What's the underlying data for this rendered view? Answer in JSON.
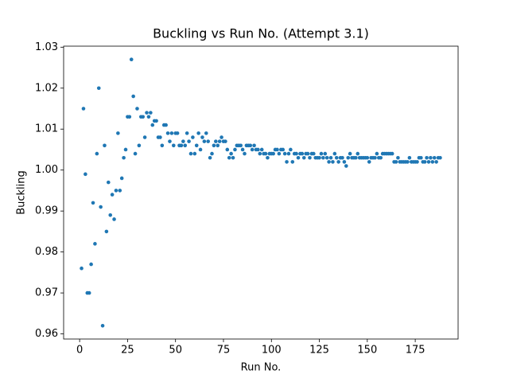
{
  "chart_data": {
    "type": "scatter",
    "title": "Buckling vs Run No. (Attempt 3.1)",
    "x_label": "Run No.",
    "y_label": "Buckling",
    "x": [
      1,
      2,
      3,
      4,
      5,
      6,
      7,
      8,
      9,
      10,
      11,
      12,
      13,
      14,
      15,
      16,
      17,
      18,
      19,
      20,
      21,
      22,
      23,
      24,
      25,
      26,
      27,
      28,
      29,
      30,
      31,
      32,
      33,
      34,
      35,
      36,
      37,
      38,
      39,
      40,
      41,
      42,
      43,
      44,
      45,
      46,
      47,
      48,
      49,
      50,
      51,
      52,
      53,
      54,
      55,
      56,
      57,
      58,
      59,
      60,
      61,
      62,
      63,
      64,
      65,
      66,
      67,
      68,
      69,
      70,
      71,
      72,
      73,
      74,
      75,
      76,
      77,
      78,
      79,
      80,
      81,
      82,
      83,
      84,
      85,
      86,
      87,
      88,
      89,
      90,
      91,
      92,
      93,
      94,
      95,
      96,
      97,
      98,
      99,
      100,
      101,
      102,
      103,
      104,
      105,
      106,
      107,
      108,
      109,
      110,
      111,
      112,
      113,
      114,
      115,
      116,
      117,
      118,
      119,
      120,
      121,
      122,
      123,
      124,
      125,
      126,
      127,
      128,
      129,
      130,
      131,
      132,
      133,
      134,
      135,
      136,
      137,
      138,
      139,
      140,
      141,
      142,
      143,
      144,
      145,
      146,
      147,
      148,
      149,
      150,
      151,
      152,
      153,
      154,
      155,
      156,
      157,
      158,
      159,
      160,
      161,
      162,
      163,
      164,
      165,
      166,
      167,
      168,
      169,
      170,
      171,
      172,
      173,
      174,
      175,
      176,
      177,
      178,
      179,
      180,
      181,
      182,
      183,
      184,
      185,
      186,
      187,
      188
    ],
    "series": [
      {
        "color": "#1f77b4",
        "values": [
          0.976,
          1.015,
          0.999,
          0.97,
          0.97,
          0.977,
          0.992,
          0.982,
          1.004,
          1.02,
          0.991,
          0.962,
          1.006,
          0.985,
          0.997,
          0.989,
          0.994,
          0.988,
          0.995,
          1.009,
          0.995,
          0.998,
          1.003,
          1.005,
          1.013,
          1.013,
          1.027,
          1.018,
          1.004,
          1.015,
          1.006,
          1.013,
          1.013,
          1.008,
          1.014,
          1.013,
          1.014,
          1.011,
          1.012,
          1.012,
          1.008,
          1.008,
          1.006,
          1.011,
          1.011,
          1.009,
          1.007,
          1.009,
          1.006,
          1.009,
          1.009,
          1.006,
          1.006,
          1.007,
          1.006,
          1.009,
          1.007,
          1.004,
          1.008,
          1.004,
          1.006,
          1.009,
          1.005,
          1.008,
          1.007,
          1.009,
          1.007,
          1.003,
          1.004,
          1.006,
          1.007,
          1.006,
          1.007,
          1.008,
          1.007,
          1.007,
          1.005,
          1.003,
          1.004,
          1.003,
          1.005,
          1.006,
          1.006,
          1.006,
          1.005,
          1.004,
          1.006,
          1.006,
          1.006,
          1.005,
          1.006,
          1.005,
          1.005,
          1.004,
          1.005,
          1.004,
          1.004,
          1.003,
          1.004,
          1.004,
          1.004,
          1.005,
          1.005,
          1.004,
          1.005,
          1.005,
          1.004,
          1.002,
          1.004,
          1.005,
          1.002,
          1.004,
          1.004,
          1.003,
          1.004,
          1.004,
          1.003,
          1.004,
          1.004,
          1.003,
          1.004,
          1.004,
          1.003,
          1.003,
          1.003,
          1.004,
          1.003,
          1.004,
          1.003,
          1.002,
          1.003,
          1.002,
          1.004,
          1.003,
          1.002,
          1.003,
          1.003,
          1.002,
          1.001,
          1.003,
          1.004,
          1.003,
          1.003,
          1.003,
          1.004,
          1.003,
          1.003,
          1.003,
          1.003,
          1.003,
          1.002,
          1.003,
          1.003,
          1.003,
          1.004,
          1.003,
          1.003,
          1.004,
          1.004,
          1.004,
          1.004,
          1.004,
          1.004,
          1.002,
          1.002,
          1.003,
          1.002,
          1.002,
          1.002,
          1.002,
          1.002,
          1.003,
          1.002,
          1.002,
          1.002,
          1.002,
          1.003,
          1.003,
          1.002,
          1.002,
          1.003,
          1.002,
          1.003,
          1.002,
          1.003,
          1.002,
          1.003,
          1.003
        ]
      }
    ],
    "xlim": [
      -8.35,
      197.35
    ],
    "ylim": [
      0.95875,
      1.03025
    ],
    "xticks": [
      0,
      25,
      50,
      75,
      100,
      125,
      150,
      175
    ],
    "yticks": [
      0.96,
      0.97,
      0.98,
      0.99,
      {
        "value": 1.0,
        "label": "1.00"
      },
      1.01,
      1.02,
      1.03
    ]
  }
}
